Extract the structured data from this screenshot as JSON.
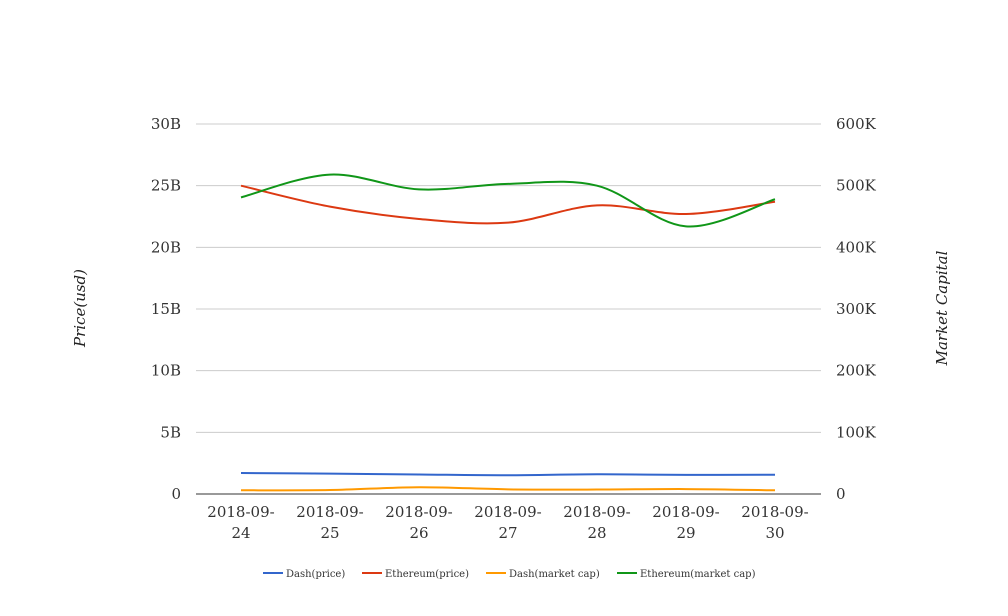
{
  "chart_data": {
    "type": "line",
    "categories": [
      "2018-09-24",
      "2018-09-25",
      "2018-09-26",
      "2018-09-27",
      "2018-09-28",
      "2018-09-29",
      "2018-09-30"
    ],
    "ylabel_left": "Price(usd)",
    "ylabel_right": "Market Capital",
    "left_axis": {
      "ylim": [
        0,
        30000000000
      ],
      "ticks": [
        0,
        5000000000,
        10000000000,
        15000000000,
        20000000000,
        25000000000,
        30000000000
      ],
      "tick_labels": [
        "0",
        "5B",
        "10B",
        "15B",
        "20B",
        "25B",
        "30B"
      ]
    },
    "right_axis": {
      "ylim": [
        0,
        600000
      ],
      "ticks": [
        0,
        100000,
        200000,
        300000,
        400000,
        500000,
        600000
      ],
      "tick_labels": [
        "0",
        "100K",
        "200K",
        "300K",
        "400K",
        "500K",
        "600K"
      ]
    },
    "grid": true,
    "legend_position": "bottom",
    "series": [
      {
        "name": "Dash(price)",
        "axis": "left",
        "color": "#3366cc",
        "values": [
          1700000000,
          1650000000,
          1580000000,
          1520000000,
          1600000000,
          1550000000,
          1560000000
        ]
      },
      {
        "name": "Ethereum(price)",
        "axis": "left",
        "color": "#dc3912",
        "values": [
          25000000000,
          23300000000,
          22300000000,
          22000000000,
          23400000000,
          22700000000,
          23700000000
        ]
      },
      {
        "name": "Dash(market cap)",
        "axis": "left",
        "color": "#ff9900",
        "values": [
          300000000,
          320000000,
          550000000,
          380000000,
          360000000,
          400000000,
          300000000
        ]
      },
      {
        "name": "Ethereum(market cap)",
        "axis": "right",
        "color": "#109618",
        "values": [
          481000,
          518000,
          494000,
          503000,
          500000,
          434000,
          478000
        ]
      }
    ]
  }
}
